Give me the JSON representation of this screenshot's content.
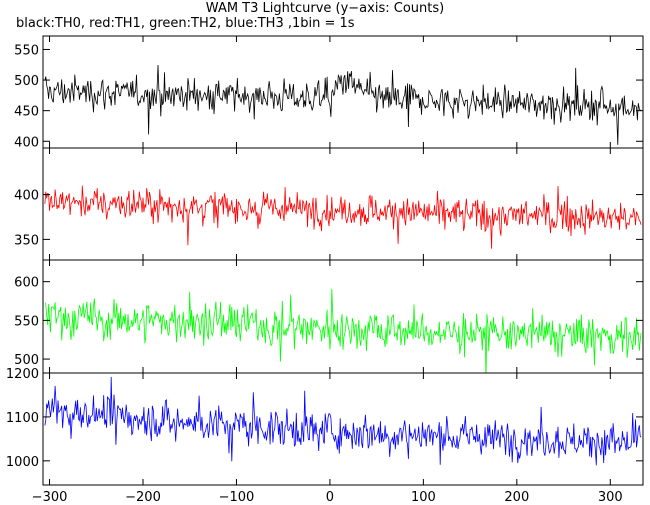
{
  "chart_data": {
    "type": "line",
    "title": "WAM T3 Lightcurve (y−axis: Counts)",
    "subtitle": "black:TH0, red:TH1, green:TH2, blue:TH3 ,1bin = 1s",
    "xlabel": "",
    "ylabel": "",
    "xlim": [
      -307,
      335
    ],
    "x_ticks": [
      -300,
      -200,
      -100,
      0,
      100,
      200,
      300
    ],
    "x_tick_labels": [
      "−300",
      "−200",
      "−100",
      "0",
      "100",
      "200",
      "300"
    ],
    "bin_seconds": 1,
    "grid": false,
    "panels": [
      {
        "color": "#000000",
        "ylim": [
          389,
          572
        ],
        "y_ticks": [
          400,
          450,
          500,
          550
        ],
        "series": {
          "name": "TH0",
          "x": [
            -300,
            -250,
            -200,
            -150,
            -100,
            -50,
            0,
            15,
            50,
            100,
            150,
            200,
            250,
            300,
            330
          ],
          "mean": [
            482,
            480,
            478,
            476,
            474,
            473,
            472,
            500,
            470,
            467,
            465,
            462,
            460,
            458,
            456
          ],
          "spread": 22
        }
      },
      {
        "color": "#ff0000",
        "ylim": [
          327,
          452
        ],
        "y_ticks": [
          350,
          400
        ],
        "series": {
          "name": "TH1",
          "x": [
            -300,
            -200,
            -100,
            0,
            100,
            200,
            300,
            330
          ],
          "mean": [
            392,
            389,
            386,
            383,
            380,
            377,
            374,
            373
          ],
          "spread": 15
        }
      },
      {
        "color": "#00ff00",
        "ylim": [
          482,
          628
        ],
        "y_ticks": [
          500,
          550,
          600
        ],
        "series": {
          "name": "TH2",
          "x": [
            -300,
            -200,
            -100,
            0,
            100,
            200,
            300,
            330
          ],
          "mean": [
            555,
            550,
            545,
            540,
            535,
            532,
            530,
            529
          ],
          "spread": 22
        }
      },
      {
        "color": "#0000ff",
        "ylim": [
          945,
          1200
        ],
        "y_ticks": [
          1000,
          1100,
          1200
        ],
        "series": {
          "name": "TH3",
          "x": [
            -300,
            -200,
            -100,
            0,
            100,
            200,
            300,
            330
          ],
          "mean": [
            1115,
            1095,
            1080,
            1068,
            1058,
            1050,
            1044,
            1042
          ],
          "spread": 35
        }
      }
    ]
  }
}
